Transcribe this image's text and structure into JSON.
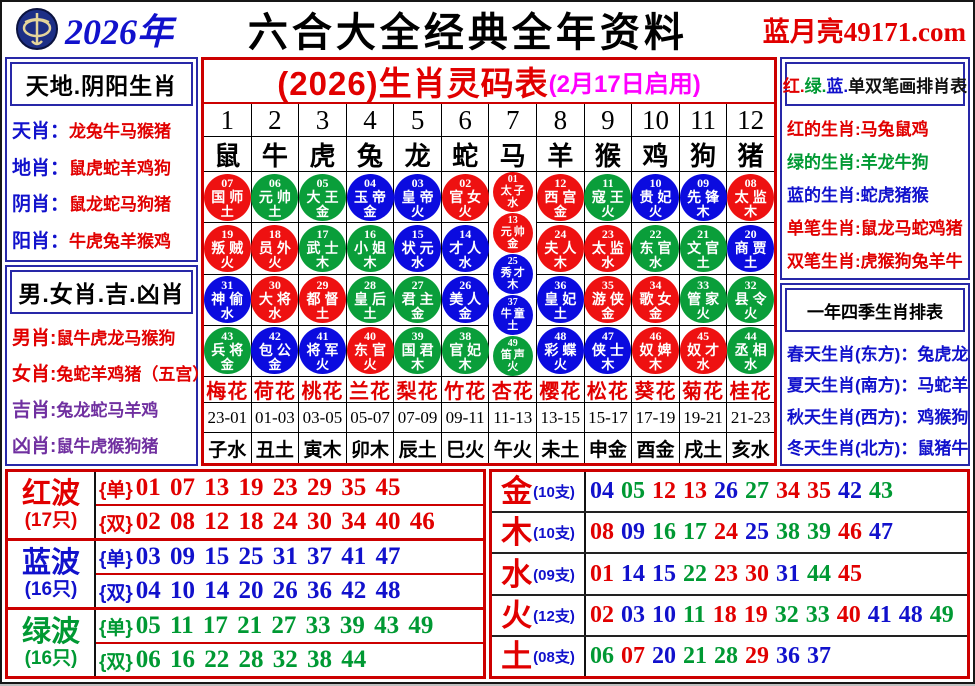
{
  "palette": {
    "red": "#e10000",
    "blue": "#1111cc",
    "green": "#009933",
    "purple": "#7030a0",
    "magenta": "#ff00ff",
    "ball_red": "#ee1111",
    "ball_blue": "#0b0bdf",
    "ball_green": "#0a9e3a",
    "border_red": "#cc0000",
    "border_blue": "#2828a8"
  },
  "header": {
    "year": "2026年",
    "title": "六合大全经典全年资料",
    "site": "蓝月亮49171.com",
    "logo": "blue-moon-emblem"
  },
  "left_top": {
    "title": "天地.阴阳生肖",
    "rows": [
      {
        "label": "天肖：",
        "value": "龙兔牛马猴猪",
        "lcolor": "b",
        "vcolor": "r"
      },
      {
        "label": "地肖：",
        "value": "鼠虎蛇羊鸡狗",
        "lcolor": "b",
        "vcolor": "r"
      },
      {
        "label": "阴肖：",
        "value": "鼠龙蛇马狗猪",
        "lcolor": "b",
        "vcolor": "r"
      },
      {
        "label": "阳肖：",
        "value": "牛虎兔羊猴鸡",
        "lcolor": "b",
        "vcolor": "r"
      }
    ]
  },
  "left_bottom": {
    "title": "男.女肖.吉.凶肖",
    "rows": [
      {
        "label": "男肖:",
        "value": "鼠牛虎龙马猴狗",
        "lcolor": "r",
        "vcolor": "r"
      },
      {
        "label": "女肖:",
        "value": "兔蛇羊鸡猪（五宫）",
        "lcolor": "r",
        "vcolor": "r"
      },
      {
        "label": "吉肖:",
        "value": "兔龙蛇马羊鸡",
        "lcolor": "p",
        "vcolor": "p"
      },
      {
        "label": "凶肖:",
        "value": "鼠牛虎猴狗猪",
        "lcolor": "p",
        "vcolor": "p"
      }
    ]
  },
  "right_top": {
    "title_parts": [
      {
        "text": "红.",
        "color": "r"
      },
      {
        "text": "绿.",
        "color": "g"
      },
      {
        "text": "蓝.",
        "color": "b"
      },
      {
        "text": "单双笔画排肖表",
        "color": "k"
      }
    ],
    "rows": [
      {
        "label": "红的生肖:",
        "value": "马兔鼠鸡",
        "lcolor": "r",
        "vcolor": "r"
      },
      {
        "label": "绿的生肖:",
        "value": "羊龙牛狗",
        "lcolor": "g",
        "vcolor": "g"
      },
      {
        "label": "蓝的生肖:",
        "value": "蛇虎猪猴",
        "lcolor": "b",
        "vcolor": "b"
      },
      {
        "label": "单笔生肖:",
        "value": "鼠龙马蛇鸡猪",
        "lcolor": "r",
        "vcolor": "r"
      },
      {
        "label": "双笔生肖:",
        "value": "虎猴狗兔羊牛",
        "lcolor": "r",
        "vcolor": "r"
      }
    ]
  },
  "right_bottom": {
    "title": "一年四季生肖排表",
    "rows": [
      {
        "label": "春天生肖(东方)：",
        "value": "兔虎龙",
        "lcolor": "b",
        "vcolor": "b"
      },
      {
        "label": "夏天生肖(南方)：",
        "value": "马蛇羊",
        "lcolor": "b",
        "vcolor": "b"
      },
      {
        "label": "秋天生肖(西方)：",
        "value": "鸡猴狗",
        "lcolor": "b",
        "vcolor": "b"
      },
      {
        "label": "冬天生肖(北方)：",
        "value": "鼠猪牛",
        "lcolor": "b",
        "vcolor": "b"
      }
    ]
  },
  "center": {
    "title": "(2026)生肖灵码表",
    "subtitle": "(2月17日启用)",
    "columns": [
      {
        "num": "1",
        "zodiac": "鼠",
        "flower": "梅花",
        "time": "23-01",
        "branch": "子水",
        "balls": [
          {
            "n": "07",
            "t": "国师",
            "e": "土",
            "c": "r"
          },
          {
            "n": "19",
            "t": "叛贼",
            "e": "火",
            "c": "r"
          },
          {
            "n": "31",
            "t": "神偷",
            "e": "水",
            "c": "b"
          },
          {
            "n": "43",
            "t": "兵将",
            "e": "金",
            "c": "g"
          }
        ]
      },
      {
        "num": "2",
        "zodiac": "牛",
        "flower": "荷花",
        "time": "01-03",
        "branch": "丑土",
        "balls": [
          {
            "n": "06",
            "t": "元帅",
            "e": "土",
            "c": "g"
          },
          {
            "n": "18",
            "t": "员外",
            "e": "火",
            "c": "r"
          },
          {
            "n": "30",
            "t": "大将",
            "e": "水",
            "c": "r"
          },
          {
            "n": "42",
            "t": "包公",
            "e": "金",
            "c": "b"
          }
        ]
      },
      {
        "num": "3",
        "zodiac": "虎",
        "flower": "桃花",
        "time": "03-05",
        "branch": "寅木",
        "balls": [
          {
            "n": "05",
            "t": "大王",
            "e": "金",
            "c": "g"
          },
          {
            "n": "17",
            "t": "武士",
            "e": "木",
            "c": "g"
          },
          {
            "n": "29",
            "t": "都督",
            "e": "土",
            "c": "r"
          },
          {
            "n": "41",
            "t": "将军",
            "e": "火",
            "c": "b"
          }
        ]
      },
      {
        "num": "4",
        "zodiac": "兔",
        "flower": "兰花",
        "time": "05-07",
        "branch": "卯木",
        "balls": [
          {
            "n": "04",
            "t": "玉帝",
            "e": "金",
            "c": "b"
          },
          {
            "n": "16",
            "t": "小姐",
            "e": "木",
            "c": "g"
          },
          {
            "n": "28",
            "t": "皇后",
            "e": "土",
            "c": "g"
          },
          {
            "n": "40",
            "t": "东官",
            "e": "火",
            "c": "r"
          }
        ]
      },
      {
        "num": "5",
        "zodiac": "龙",
        "flower": "梨花",
        "time": "07-09",
        "branch": "辰土",
        "balls": [
          {
            "n": "03",
            "t": "皇帝",
            "e": "火",
            "c": "b"
          },
          {
            "n": "15",
            "t": "状元",
            "e": "水",
            "c": "b"
          },
          {
            "n": "27",
            "t": "君主",
            "e": "金",
            "c": "g"
          },
          {
            "n": "39",
            "t": "国君",
            "e": "木",
            "c": "g"
          }
        ]
      },
      {
        "num": "6",
        "zodiac": "蛇",
        "flower": "竹花",
        "time": "09-11",
        "branch": "巳火",
        "balls": [
          {
            "n": "02",
            "t": "官女",
            "e": "火",
            "c": "r"
          },
          {
            "n": "14",
            "t": "才人",
            "e": "水",
            "c": "b"
          },
          {
            "n": "26",
            "t": "美人",
            "e": "金",
            "c": "b"
          },
          {
            "n": "38",
            "t": "官妃",
            "e": "木",
            "c": "g"
          }
        ]
      },
      {
        "num": "7",
        "zodiac": "马",
        "flower": "杏花",
        "time": "11-13",
        "branch": "午火",
        "balls": [
          {
            "n": "01",
            "t": "太子",
            "e": "水",
            "c": "r"
          },
          {
            "n": "13",
            "t": "元帅",
            "e": "金",
            "c": "r"
          },
          {
            "n": "25",
            "t": "秀才",
            "e": "木",
            "c": "b"
          },
          {
            "n": "37",
            "t": "牛童",
            "e": "土",
            "c": "b"
          },
          {
            "n": "49",
            "t": "笛声",
            "e": "火",
            "c": "g"
          }
        ]
      },
      {
        "num": "8",
        "zodiac": "羊",
        "flower": "樱花",
        "time": "13-15",
        "branch": "未土",
        "balls": [
          {
            "n": "12",
            "t": "西宫",
            "e": "金",
            "c": "r"
          },
          {
            "n": "24",
            "t": "夫人",
            "e": "木",
            "c": "r"
          },
          {
            "n": "36",
            "t": "皇妃",
            "e": "土",
            "c": "b"
          },
          {
            "n": "48",
            "t": "彩蝶",
            "e": "火",
            "c": "b"
          }
        ]
      },
      {
        "num": "9",
        "zodiac": "猴",
        "flower": "松花",
        "time": "15-17",
        "branch": "申金",
        "balls": [
          {
            "n": "11",
            "t": "寇王",
            "e": "火",
            "c": "g"
          },
          {
            "n": "23",
            "t": "太监",
            "e": "水",
            "c": "r"
          },
          {
            "n": "35",
            "t": "游侠",
            "e": "金",
            "c": "r"
          },
          {
            "n": "47",
            "t": "侠士",
            "e": "木",
            "c": "b"
          }
        ]
      },
      {
        "num": "10",
        "zodiac": "鸡",
        "flower": "葵花",
        "time": "17-19",
        "branch": "酉金",
        "balls": [
          {
            "n": "10",
            "t": "贵妃",
            "e": "火",
            "c": "b"
          },
          {
            "n": "22",
            "t": "东官",
            "e": "水",
            "c": "g"
          },
          {
            "n": "34",
            "t": "歌女",
            "e": "金",
            "c": "r"
          },
          {
            "n": "46",
            "t": "奴婢",
            "e": "木",
            "c": "r"
          }
        ]
      },
      {
        "num": "11",
        "zodiac": "狗",
        "flower": "菊花",
        "time": "19-21",
        "branch": "戌土",
        "balls": [
          {
            "n": "09",
            "t": "先锋",
            "e": "木",
            "c": "b"
          },
          {
            "n": "21",
            "t": "文官",
            "e": "土",
            "c": "g"
          },
          {
            "n": "33",
            "t": "管家",
            "e": "火",
            "c": "g"
          },
          {
            "n": "45",
            "t": "奴才",
            "e": "水",
            "c": "r"
          }
        ]
      },
      {
        "num": "12",
        "zodiac": "猪",
        "flower": "桂花",
        "time": "21-23",
        "branch": "亥水",
        "balls": [
          {
            "n": "08",
            "t": "太监",
            "e": "木",
            "c": "r"
          },
          {
            "n": "20",
            "t": "商贾",
            "e": "土",
            "c": "b"
          },
          {
            "n": "32",
            "t": "县令",
            "e": "火",
            "c": "g"
          },
          {
            "n": "44",
            "t": "丞相",
            "e": "水",
            "c": "g"
          }
        ]
      }
    ]
  },
  "labels": {
    "odd": "{单}",
    "even": "{双}"
  },
  "waves": [
    {
      "name": "红波",
      "count": "(17只)",
      "color": "r",
      "odd": "01 07 13 19 23 29 35 45",
      "even": "02 08 12 18 24 30 34 40 46"
    },
    {
      "name": "蓝波",
      "count": "(16只)",
      "color": "b",
      "odd": "03 09 15 25 31 37 41 47",
      "even": "04 10 14 20 26 36 42 48"
    },
    {
      "name": "绿波",
      "count": "(16只)",
      "color": "g",
      "odd": "05 11 17 21 27 33 39 43 49",
      "even": "06 16 22 28 32 38 44"
    }
  ],
  "elements": [
    {
      "name": "金",
      "count": "(10支)",
      "numbers": [
        {
          "n": "04",
          "c": "b"
        },
        {
          "n": "05",
          "c": "g"
        },
        {
          "n": "12",
          "c": "r"
        },
        {
          "n": "13",
          "c": "r"
        },
        {
          "n": "26",
          "c": "b"
        },
        {
          "n": "27",
          "c": "g"
        },
        {
          "n": "34",
          "c": "r"
        },
        {
          "n": "35",
          "c": "r"
        },
        {
          "n": "42",
          "c": "b"
        },
        {
          "n": "43",
          "c": "g"
        }
      ]
    },
    {
      "name": "木",
      "count": "(10支)",
      "numbers": [
        {
          "n": "08",
          "c": "r"
        },
        {
          "n": "09",
          "c": "b"
        },
        {
          "n": "16",
          "c": "g"
        },
        {
          "n": "17",
          "c": "g"
        },
        {
          "n": "24",
          "c": "r"
        },
        {
          "n": "25",
          "c": "b"
        },
        {
          "n": "38",
          "c": "g"
        },
        {
          "n": "39",
          "c": "g"
        },
        {
          "n": "46",
          "c": "r"
        },
        {
          "n": "47",
          "c": "b"
        }
      ]
    },
    {
      "name": "水",
      "count": "(09支)",
      "numbers": [
        {
          "n": "01",
          "c": "r"
        },
        {
          "n": "14",
          "c": "b"
        },
        {
          "n": "15",
          "c": "b"
        },
        {
          "n": "22",
          "c": "g"
        },
        {
          "n": "23",
          "c": "r"
        },
        {
          "n": "30",
          "c": "r"
        },
        {
          "n": "31",
          "c": "b"
        },
        {
          "n": "44",
          "c": "g"
        },
        {
          "n": "45",
          "c": "r"
        }
      ]
    },
    {
      "name": "火",
      "count": "(12支)",
      "numbers": [
        {
          "n": "02",
          "c": "r"
        },
        {
          "n": "03",
          "c": "b"
        },
        {
          "n": "10",
          "c": "b"
        },
        {
          "n": "11",
          "c": "g"
        },
        {
          "n": "18",
          "c": "r"
        },
        {
          "n": "19",
          "c": "r"
        },
        {
          "n": "32",
          "c": "g"
        },
        {
          "n": "33",
          "c": "g"
        },
        {
          "n": "40",
          "c": "r"
        },
        {
          "n": "41",
          "c": "b"
        },
        {
          "n": "48",
          "c": "b"
        },
        {
          "n": "49",
          "c": "g"
        }
      ]
    },
    {
      "name": "土",
      "count": "(08支)",
      "numbers": [
        {
          "n": "06",
          "c": "g"
        },
        {
          "n": "07",
          "c": "r"
        },
        {
          "n": "20",
          "c": "b"
        },
        {
          "n": "21",
          "c": "g"
        },
        {
          "n": "28",
          "c": "g"
        },
        {
          "n": "29",
          "c": "r"
        },
        {
          "n": "36",
          "c": "b"
        },
        {
          "n": "37",
          "c": "b"
        }
      ]
    }
  ]
}
